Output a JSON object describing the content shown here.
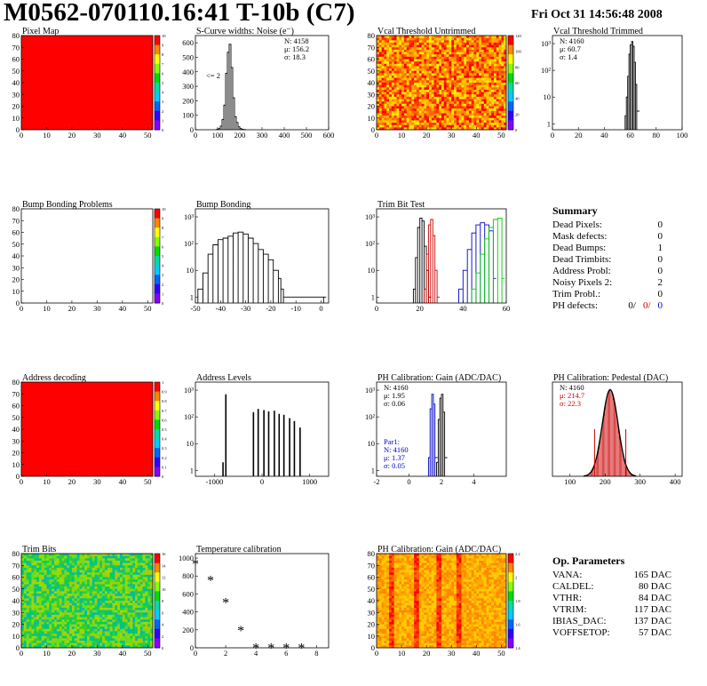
{
  "header": {
    "title": "M0562-070110.16:41 T-10b (C7)",
    "date": "Fri Oct 31 14:56:48 2008"
  },
  "summary": {
    "title": "Summary",
    "rows": [
      {
        "label": "Dead Pixels:",
        "value": "0"
      },
      {
        "label": "Mask defects:",
        "value": "0"
      },
      {
        "label": "Dead Bumps:",
        "value": "1"
      },
      {
        "label": "Dead Trimbits:",
        "value": "0"
      },
      {
        "label": "Address Probl:",
        "value": "0"
      },
      {
        "label": "Noisy Pixels 2:",
        "value": "2"
      },
      {
        "label": "Trim Probl.:",
        "value": "0"
      }
    ],
    "ph_label": "PH defects:",
    "ph_values": [
      {
        "text": "0/",
        "color": "#000000"
      },
      {
        "text": "0/",
        "color": "#cc0000"
      },
      {
        "text": "0",
        "color": "#0000cc"
      }
    ]
  },
  "op_parameters": {
    "title": "Op. Parameters",
    "rows": [
      {
        "label": "VANA:",
        "value": "165 DAC"
      },
      {
        "label": "CALDEL:",
        "value": "80 DAC"
      },
      {
        "label": "VTHR:",
        "value": "84 DAC"
      },
      {
        "label": "VTRIM:",
        "value": "117 DAC"
      },
      {
        "label": "IBIAS_DAC:",
        "value": "137 DAC"
      },
      {
        "label": "VOFFSETOP:",
        "value": "57 DAC"
      }
    ]
  },
  "chart_data": [
    {
      "id": "pixel-map",
      "type": "heatmap",
      "title": "Pixel Map",
      "x_ticks": [
        "0",
        "10",
        "20",
        "30",
        "40",
        "50"
      ],
      "y_ticks": [
        "0",
        "10",
        "20",
        "30",
        "40",
        "50",
        "60",
        "70",
        "80"
      ],
      "xlim": [
        0,
        52
      ],
      "ylim": [
        0,
        80
      ],
      "fill": "uniform-high",
      "palette_ticks": [
        "0",
        "1",
        "2",
        "3",
        "4",
        "5",
        "6",
        "7",
        "8",
        "9",
        "10"
      ]
    },
    {
      "id": "scurve-noise",
      "type": "line",
      "title": "S-Curve widths: Noise (e⁻)",
      "x_ticks": [
        "0",
        "100",
        "200",
        "300",
        "400",
        "500",
        "600"
      ],
      "y_ticks": [
        "0",
        "100",
        "200",
        "300",
        "400",
        "500",
        "600"
      ],
      "xlim": [
        0,
        600
      ],
      "ylim": [
        0,
        650
      ],
      "stats": [
        "N: 4158",
        "μ: 156.2",
        "σ: 18.3"
      ],
      "annotation": "<= 2",
      "series": [
        {
          "color": "#000000",
          "x": [
            96,
            104,
            112,
            120,
            128,
            136,
            144,
            152,
            160,
            168,
            176,
            184,
            192,
            200,
            208,
            216
          ],
          "y": [
            3,
            8,
            25,
            70,
            170,
            390,
            535,
            590,
            430,
            220,
            90,
            50,
            20,
            8,
            3,
            1
          ]
        }
      ]
    },
    {
      "id": "vcal-untrimmed",
      "type": "heatmap",
      "title": "Vcal Threshold Untrimmed",
      "x_ticks": [
        "0",
        "10",
        "20",
        "30",
        "40",
        "50"
      ],
      "y_ticks": [
        "0",
        "10",
        "20",
        "30",
        "40",
        "50",
        "60",
        "70",
        "80"
      ],
      "xlim": [
        0,
        52
      ],
      "ylim": [
        0,
        80
      ],
      "fill": "noisy-warm",
      "palette_ticks": [
        "0",
        "20",
        "40",
        "60",
        "80",
        "100",
        "120"
      ]
    },
    {
      "id": "vcal-trimmed",
      "type": "line",
      "title": "Vcal Threshold Trimmed",
      "log_y": true,
      "x_ticks": [
        "0",
        "20",
        "40",
        "60",
        "80",
        "100"
      ],
      "y_ticks": [
        "1",
        "10",
        "10²",
        "10³"
      ],
      "xlim": [
        0,
        100
      ],
      "ylim": [
        0.6,
        2000
      ],
      "stats": [
        "N: 4160",
        "μ: 60.7",
        "σ: 1.4"
      ],
      "series": [
        {
          "color": "#000000",
          "x": [
            56,
            57,
            58,
            59,
            60,
            61,
            62,
            63,
            64,
            65
          ],
          "y": [
            2,
            10,
            60,
            400,
            900,
            1200,
            800,
            200,
            30,
            3
          ]
        }
      ]
    },
    {
      "id": "bump-bonding-problems",
      "type": "heatmap",
      "title": "Bump Bonding Problems",
      "x_ticks": [
        "0",
        "10",
        "20",
        "30",
        "40",
        "50"
      ],
      "y_ticks": [
        "0",
        "10",
        "20",
        "30",
        "40",
        "50",
        "60",
        "70",
        "80"
      ],
      "xlim": [
        0,
        52
      ],
      "ylim": [
        0,
        80
      ],
      "fill": "empty",
      "palette_ticks": [
        "0",
        "1",
        "2",
        "3",
        "4",
        "5",
        "6",
        "7",
        "8",
        "9",
        "10"
      ]
    },
    {
      "id": "bump-bonding",
      "type": "line",
      "title": "Bump Bonding",
      "log_y": true,
      "x_ticks": [
        "-50",
        "-40",
        "-30",
        "-20",
        "-10",
        "0"
      ],
      "y_ticks": [
        "1",
        "10",
        "10²",
        "10³"
      ],
      "xlim": [
        -50,
        3
      ],
      "ylim": [
        0.6,
        2000
      ],
      "series": [
        {
          "color": "#000000",
          "x": [
            -49,
            -47,
            -45,
            -43,
            -41,
            -39,
            -37,
            -35,
            -33,
            -31,
            -29,
            -27,
            -25,
            -23,
            -21,
            -19,
            -17,
            -16,
            -15,
            1
          ],
          "y": [
            2,
            8,
            40,
            90,
            140,
            160,
            190,
            250,
            270,
            230,
            160,
            100,
            60,
            40,
            25,
            10,
            5,
            2,
            1,
            1
          ]
        }
      ]
    },
    {
      "id": "trim-bit-test",
      "type": "line",
      "title": "Trim Bit Test",
      "log_y": true,
      "x_ticks": [
        "0",
        "20",
        "40",
        "60"
      ],
      "y_ticks": [
        "1",
        "10",
        "10²",
        "10³"
      ],
      "xlim": [
        0,
        60
      ],
      "ylim": [
        0.6,
        2000
      ],
      "series": [
        {
          "color": "#000000",
          "x": [
            17,
            18,
            19,
            20,
            21,
            22,
            23,
            24
          ],
          "y": [
            2,
            30,
            400,
            900,
            700,
            80,
            10,
            1
          ]
        },
        {
          "color": "#cc0000",
          "x": [
            22,
            23,
            24,
            25,
            26,
            27,
            28
          ],
          "y": [
            2,
            40,
            500,
            800,
            200,
            10,
            1
          ]
        },
        {
          "color": "#0000cc",
          "x": [
            38,
            40,
            42,
            44,
            46,
            48,
            50,
            52,
            54
          ],
          "y": [
            2,
            10,
            60,
            250,
            500,
            600,
            500,
            300,
            5
          ]
        },
        {
          "color": "#00cc00",
          "x": [
            44,
            46,
            48,
            50,
            52,
            54,
            56,
            58
          ],
          "y": [
            2,
            8,
            40,
            150,
            400,
            800,
            900,
            5
          ]
        }
      ]
    },
    {
      "id": "address-decoding",
      "type": "heatmap",
      "title": "Address decoding",
      "x_ticks": [
        "0",
        "10",
        "20",
        "30",
        "40",
        "50"
      ],
      "y_ticks": [
        "0",
        "10",
        "20",
        "30",
        "40",
        "50",
        "60",
        "70",
        "80"
      ],
      "xlim": [
        0,
        52
      ],
      "ylim": [
        0,
        80
      ],
      "fill": "uniform-high",
      "palette_ticks": [
        "0",
        "0.1",
        "0.2",
        "0.3",
        "0.4",
        "0.5",
        "0.6",
        "0.7",
        "0.8",
        "0.9",
        "1"
      ]
    },
    {
      "id": "address-levels",
      "type": "bar",
      "title": "Address Levels",
      "log_y": true,
      "x_ticks": [
        "-1000",
        "0",
        "1000"
      ],
      "y_ticks": [
        "1",
        "10",
        "10²",
        "10³"
      ],
      "xlim": [
        -1400,
        1400
      ],
      "ylim": [
        0.6,
        2000
      ],
      "x": [
        -820,
        -760,
        -180,
        -80,
        40,
        140,
        260,
        360,
        460,
        580,
        680,
        800
      ],
      "values": [
        2,
        700,
        150,
        200,
        180,
        160,
        170,
        130,
        120,
        90,
        70,
        40
      ]
    },
    {
      "id": "ph-gain",
      "type": "line",
      "title": "PH Calibration: Gain (ADC/DAC)",
      "log_y": true,
      "x_ticks": [
        "-2",
        "0",
        "2",
        "4"
      ],
      "y_ticks": [
        "1",
        "10",
        "10²",
        "10³"
      ],
      "xlim": [
        -2,
        6
      ],
      "ylim": [
        0.6,
        2000
      ],
      "stats": [
        "N: 4160",
        "μ: 1.95",
        "σ: 0.06"
      ],
      "stats2_title": "Par1:",
      "stats2": [
        "N: 4160",
        "μ: 1.37",
        "σ: 0.05"
      ],
      "series": [
        {
          "color": "#000000",
          "x": [
            1.7,
            1.8,
            1.9,
            2.0,
            2.1,
            2.2
          ],
          "y": [
            2,
            80,
            500,
            700,
            150,
            3
          ]
        },
        {
          "color": "#0000cc",
          "x": [
            1.2,
            1.3,
            1.4,
            1.5,
            1.6
          ],
          "y": [
            3,
            200,
            700,
            300,
            3
          ]
        }
      ]
    },
    {
      "id": "ph-pedestal",
      "type": "bar",
      "title": "PH Calibration: Pedestal (DAC)",
      "x_ticks": [
        "100",
        "200",
        "300",
        "400"
      ],
      "y_ticks": [],
      "xlim": [
        50,
        420
      ],
      "ylim": [
        0,
        1
      ],
      "stats": [
        "N: 4160",
        "μ: 214.7",
        "σ: 22.3"
      ],
      "mean": 214.7,
      "sigma": 22.3
    },
    {
      "id": "trim-bits",
      "type": "heatmap",
      "title": "Trim Bits",
      "x_ticks": [
        "0",
        "10",
        "20",
        "30",
        "40",
        "50"
      ],
      "y_ticks": [
        "0",
        "10",
        "20",
        "30",
        "40",
        "50",
        "60",
        "70",
        "80"
      ],
      "xlim": [
        0,
        52
      ],
      "ylim": [
        0,
        80
      ],
      "fill": "noisy-cool",
      "palette_ticks": [
        "0",
        "2",
        "4",
        "6",
        "8",
        "10",
        "12",
        "14",
        "16"
      ]
    },
    {
      "id": "temperature-calibration",
      "type": "scatter",
      "title": "Temperature calibration",
      "x_ticks": [
        "0",
        "2",
        "4",
        "6",
        "8"
      ],
      "y_ticks": [
        "0",
        "200",
        "400",
        "600",
        "800",
        "1000"
      ],
      "xlim": [
        0,
        8.8
      ],
      "ylim": [
        0,
        1050
      ],
      "series": [
        {
          "color": "#000000",
          "x": [
            0,
            1,
            2,
            3,
            4,
            5,
            6,
            7
          ],
          "y": [
            940,
            760,
            510,
            200,
            5,
            5,
            5,
            5
          ]
        }
      ]
    },
    {
      "id": "ph-gain-map",
      "type": "heatmap",
      "title": "PH Calibration: Gain (ADC/DAC)",
      "x_ticks": [
        "0",
        "10",
        "20",
        "30",
        "40",
        "50"
      ],
      "y_ticks": [
        "0",
        "10",
        "20",
        "30",
        "40",
        "50",
        "60",
        "70",
        "80"
      ],
      "xlim": [
        0,
        52
      ],
      "ylim": [
        0,
        80
      ],
      "fill": "striped-warm",
      "palette_ticks": [
        "1.4",
        "1.6",
        "1.8",
        "2",
        "2.2"
      ]
    }
  ]
}
